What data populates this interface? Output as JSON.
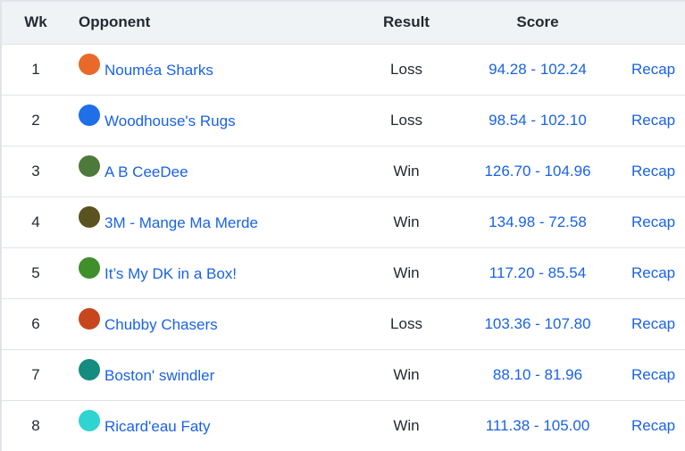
{
  "headers": {
    "wk": "Wk",
    "opponent": "Opponent",
    "result": "Result",
    "score": "Score"
  },
  "rows": [
    {
      "wk": "1",
      "opponent": "Nouméa Sharks",
      "result": "Loss",
      "score": "94.28 - 102.24",
      "recap": "Recap",
      "icon": "shark-logo-avatar",
      "color": "#e8692a"
    },
    {
      "wk": "2",
      "opponent": "Woodhouse's Rugs",
      "result": "Loss",
      "score": "98.54 - 102.10",
      "recap": "Recap",
      "icon": "helmet-avatar",
      "color": "#1f6fe8"
    },
    {
      "wk": "3",
      "opponent": "A B CeeDee",
      "result": "Win",
      "score": "126.70 - 104.96",
      "recap": "Recap",
      "icon": "photo-avatar",
      "color": "#4d7a3a"
    },
    {
      "wk": "4",
      "opponent": "3M - Mange Ma Merde",
      "result": "Win",
      "score": "134.98 - 72.58",
      "recap": "Recap",
      "icon": "photo-avatar",
      "color": "#5a5220"
    },
    {
      "wk": "5",
      "opponent": "It’s My DK in a Box!",
      "result": "Win",
      "score": "117.20 - 85.54",
      "recap": "Recap",
      "icon": "player-photo-avatar",
      "color": "#3f8f2a"
    },
    {
      "wk": "6",
      "opponent": "Chubby Chasers",
      "result": "Loss",
      "score": "103.36 - 107.80",
      "recap": "Recap",
      "icon": "player-photo-avatar",
      "color": "#c8461e"
    },
    {
      "wk": "7",
      "opponent": "Boston' swindler",
      "result": "Win",
      "score": "88.10 - 81.96",
      "recap": "Recap",
      "icon": "helmet-avatar",
      "color": "#168b80"
    },
    {
      "wk": "8",
      "opponent": "Ricard'eau Faty",
      "result": "Win",
      "score": "111.38 - 105.00",
      "recap": "Recap",
      "icon": "helmet-avatar",
      "color": "#2fd3cf"
    }
  ]
}
